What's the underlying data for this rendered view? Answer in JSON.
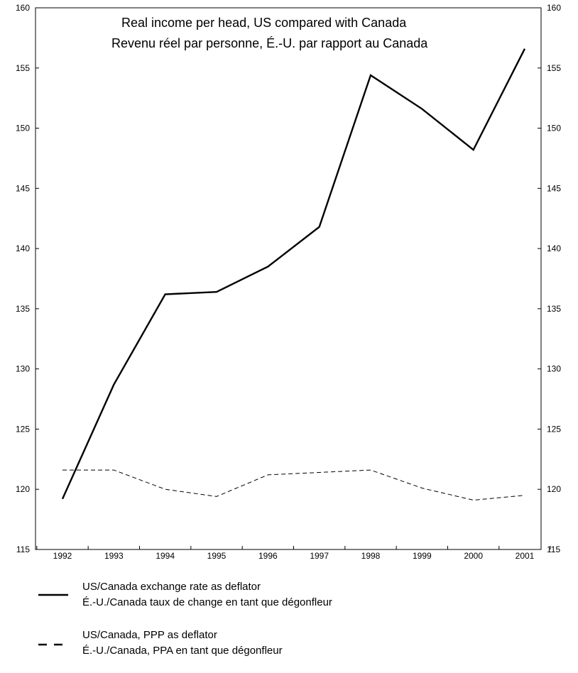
{
  "chart_data": {
    "type": "line",
    "title": "Real income per head, US compared with Canada",
    "subtitle": "Revenu réel par personne, É.-U. par rapport au Canada",
    "x": [
      "1992",
      "1993",
      "1994",
      "1995",
      "1996",
      "1997",
      "1998",
      "1999",
      "2000",
      "2001"
    ],
    "ylim": [
      115,
      160
    ],
    "yticks": [
      115,
      120,
      125,
      130,
      135,
      140,
      145,
      150,
      155,
      160
    ],
    "grid": false,
    "legend_position": "bottom",
    "series": [
      {
        "name": "US/Canada exchange rate as deflator",
        "name_fr": "É.-U./Canada taux de change en tant que dégonfleur",
        "style": "solid",
        "values": [
          119.2,
          128.7,
          136.2,
          136.4,
          138.5,
          141.8,
          154.4,
          151.6,
          148.2,
          156.6
        ]
      },
      {
        "name": "US/Canada, PPP as deflator",
        "name_fr": "É.-U./Canada, PPA en tant que dégonfleur",
        "style": "dashed",
        "values": [
          121.6,
          121.6,
          120.0,
          119.4,
          121.2,
          121.4,
          121.6,
          120.1,
          119.1,
          119.5
        ]
      }
    ]
  }
}
